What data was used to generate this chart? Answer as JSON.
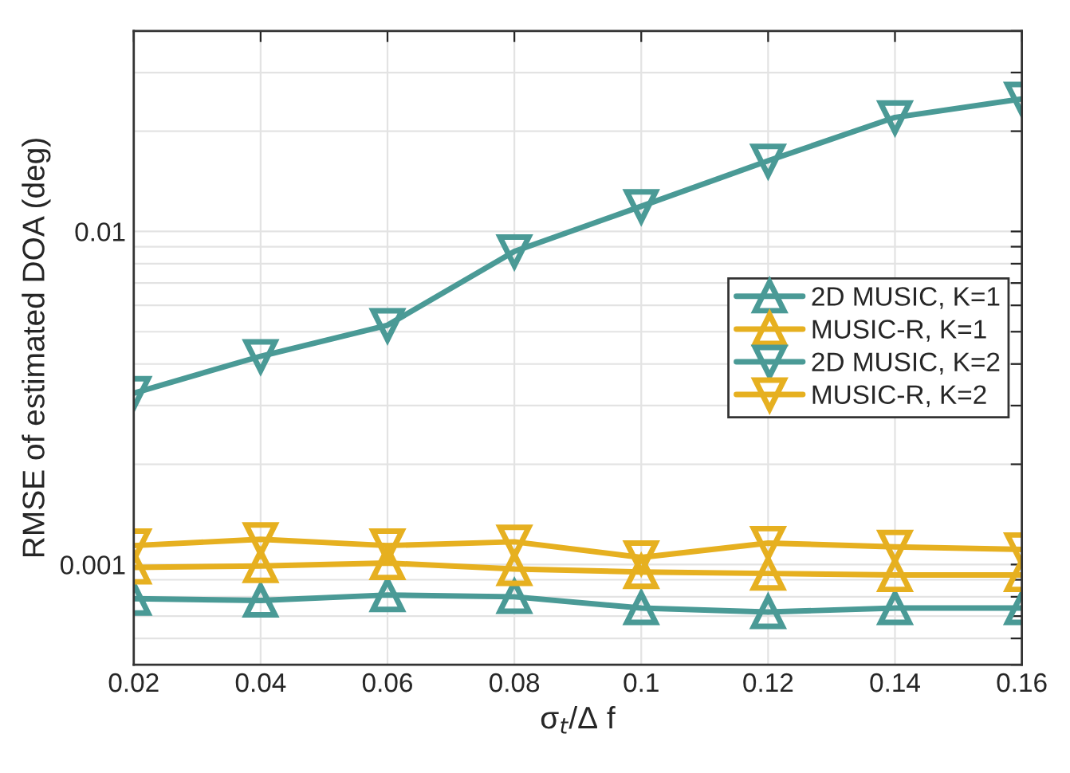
{
  "chart_data": {
    "type": "line",
    "xlabel": "σ$_{t}$/Δ f",
    "ylabel": "RMSE of estimated DOA (deg)",
    "x": [
      0.02,
      0.04,
      0.06,
      0.08,
      0.1,
      0.12,
      0.14,
      0.16
    ],
    "series": [
      {
        "name": "2D MUSIC, K=1",
        "color": "#4a9a96",
        "marker": "triangle",
        "values": [
          0.00079,
          0.00078,
          0.00081,
          0.0008,
          0.00074,
          0.00072,
          0.00074,
          0.00074
        ]
      },
      {
        "name": "MUSIC-R, K=1",
        "color": "#e6b020",
        "marker": "triangle",
        "values": [
          0.00098,
          0.00099,
          0.00101,
          0.00097,
          0.00095,
          0.00094,
          0.00093,
          0.00093
        ]
      },
      {
        "name": "2D MUSIC, K=2",
        "color": "#4a9a96",
        "marker": "triangle_down",
        "values": [
          0.00327,
          0.00422,
          0.00523,
          0.00871,
          0.0119,
          0.0163,
          0.022,
          0.025
        ]
      },
      {
        "name": "MUSIC-R, K=2",
        "color": "#e6b020",
        "marker": "triangle_down",
        "values": [
          0.00114,
          0.00119,
          0.00114,
          0.00117,
          0.00105,
          0.00116,
          0.00113,
          0.00111
        ]
      }
    ],
    "log": "y",
    "xlim": [
      0.02,
      0.16
    ],
    "xticks": [
      0.02,
      0.04,
      0.06,
      0.08,
      0.1,
      0.12,
      0.14,
      0.16
    ],
    "ylim": [
      0.0005,
      0.04
    ],
    "yticks": [
      {
        "value": 0.0005,
        "label": null
      },
      {
        "value": 0.0006,
        "label": null
      },
      {
        "value": 0.0007,
        "label": null
      },
      {
        "value": 0.0008,
        "label": null
      },
      {
        "value": 0.0009,
        "label": null
      },
      0.001,
      {
        "value": 0.002,
        "label": null
      },
      {
        "value": 0.003,
        "label": null
      },
      {
        "value": 0.004,
        "label": null
      },
      {
        "value": 0.005,
        "label": null
      },
      {
        "value": 0.006,
        "label": null
      },
      {
        "value": 0.007,
        "label": null
      },
      {
        "value": 0.008,
        "label": null
      },
      {
        "value": 0.009,
        "label": null
      },
      0.01,
      {
        "value": 0.02,
        "label": null
      },
      {
        "value": 0.03,
        "label": null
      },
      {
        "value": 0.04,
        "label": null
      }
    ],
    "grid": true,
    "legend": "right",
    "line_style": "solid"
  }
}
